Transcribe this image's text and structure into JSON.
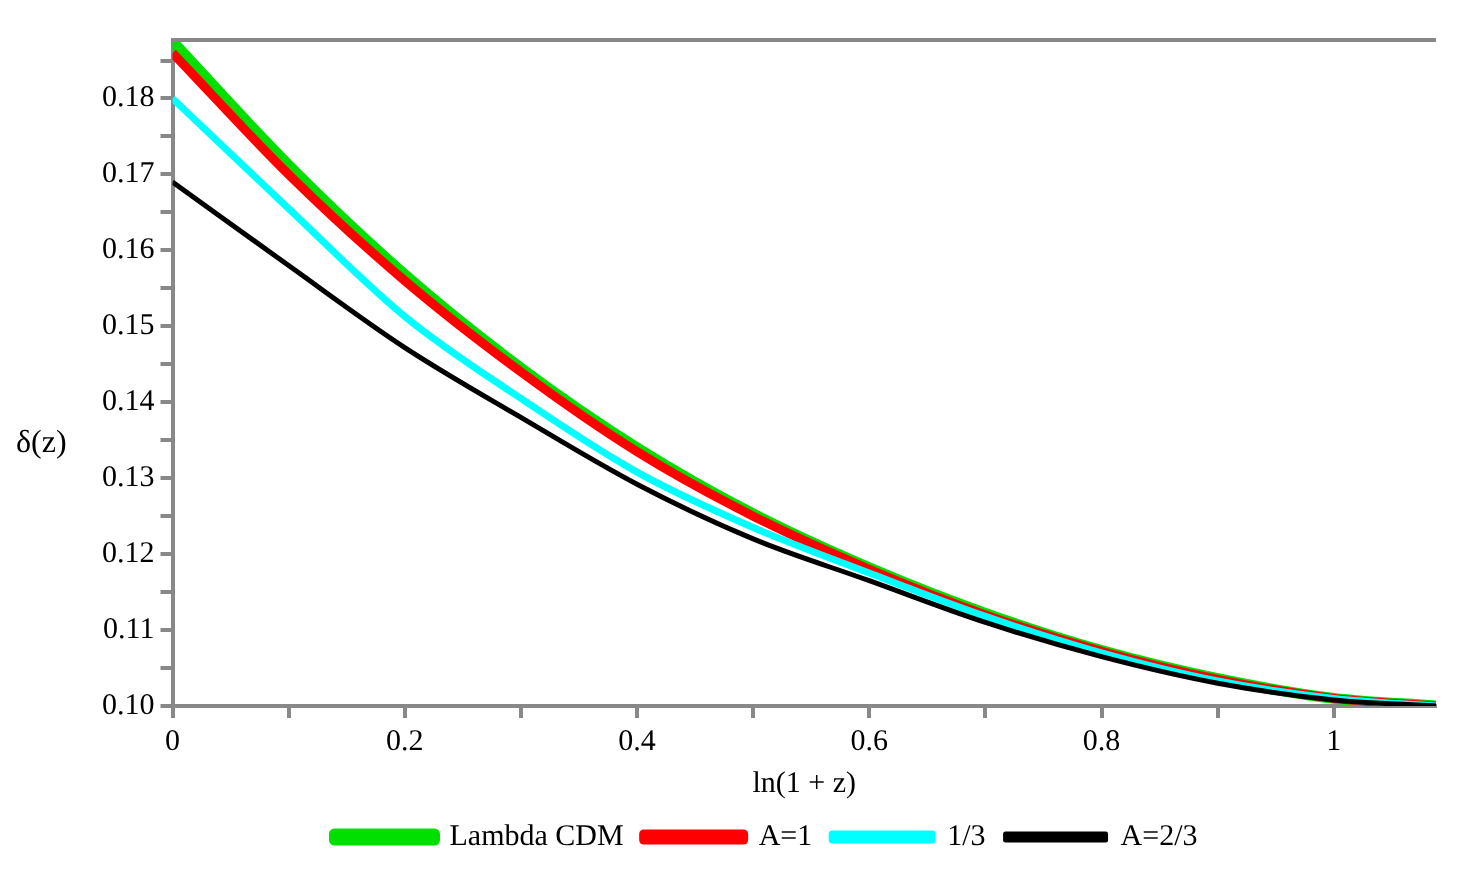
{
  "chart_data": {
    "type": "line",
    "xlabel": "ln(1 + z)",
    "ylabel": "δ(z)",
    "x": [
      0,
      0.1,
      0.2,
      0.3,
      0.4,
      0.5,
      0.6,
      0.7,
      0.8,
      0.9,
      1.0,
      1.088
    ],
    "series": [
      {
        "name": "Lambda CDM",
        "color": "#00e000",
        "values": [
          0.1875,
          0.1712,
          0.1568,
          0.1445,
          0.134,
          0.1253,
          0.1182,
          0.1122,
          0.1073,
          0.1036,
          0.101,
          0.1
        ]
      },
      {
        "name": "A=1",
        "color": "#ff0000",
        "values": [
          0.186,
          0.17,
          0.156,
          0.144,
          0.1335,
          0.125,
          0.118,
          0.112,
          0.1072,
          0.1035,
          0.101,
          0.1
        ]
      },
      {
        "name": "1/3",
        "color": "#00ffff",
        "values": [
          0.18,
          0.1655,
          0.1513,
          0.1405,
          0.1308,
          0.1235,
          0.1175,
          0.1118,
          0.107,
          0.1033,
          0.101,
          0.1
        ]
      },
      {
        "name": "A=2/3",
        "color": "#000000",
        "values": [
          0.169,
          0.158,
          0.1472,
          0.138,
          0.1292,
          0.122,
          0.1165,
          0.111,
          0.1065,
          0.103,
          0.1008,
          0.1
        ]
      }
    ],
    "xlim": [
      0,
      1.088
    ],
    "ylim": [
      0.1,
      0.1877
    ],
    "xticks": [
      0,
      {
        "value": 0.1,
        "label": null
      },
      0.2,
      {
        "value": 0.3,
        "label": null
      },
      0.4,
      {
        "value": 0.5,
        "label": null
      },
      0.6,
      {
        "value": 0.7,
        "label": null
      },
      0.8,
      {
        "value": 0.9,
        "label": null
      },
      1
    ],
    "yticks": [
      {
        "value": 0.1,
        "label": "0.10"
      },
      {
        "value": 0.105,
        "label": null
      },
      0.11,
      {
        "value": 0.115,
        "label": null
      },
      0.12,
      {
        "value": 0.125,
        "label": null
      },
      0.13,
      {
        "value": 0.135,
        "label": null
      },
      0.14,
      {
        "value": 0.145,
        "label": null
      },
      0.15,
      {
        "value": 0.155,
        "label": null
      },
      0.16,
      {
        "value": 0.165,
        "label": null
      },
      0.17,
      {
        "value": 0.175,
        "label": null
      },
      0.18,
      {
        "value": 0.185,
        "label": null
      }
    ],
    "grid": false,
    "legend": "bottom",
    "marker": "none",
    "line_style": "solid"
  }
}
